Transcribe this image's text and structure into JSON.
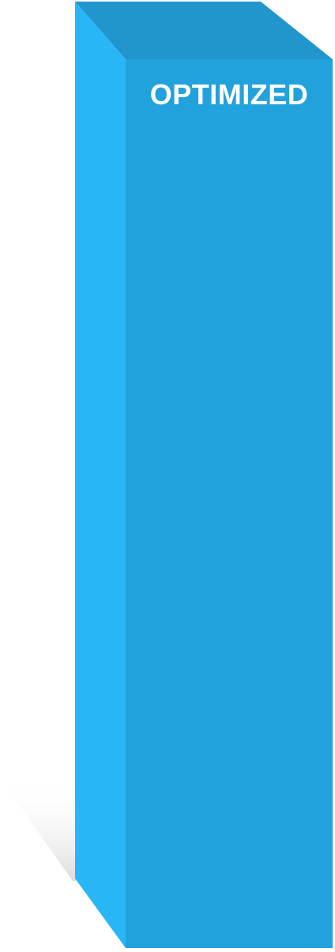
{
  "bar": {
    "label": "OPTIMIZED",
    "colors": {
      "top": "#2196cc",
      "side": "#29b6f6",
      "front": "#22a2dc",
      "shadow": "#e6e6e8"
    }
  }
}
